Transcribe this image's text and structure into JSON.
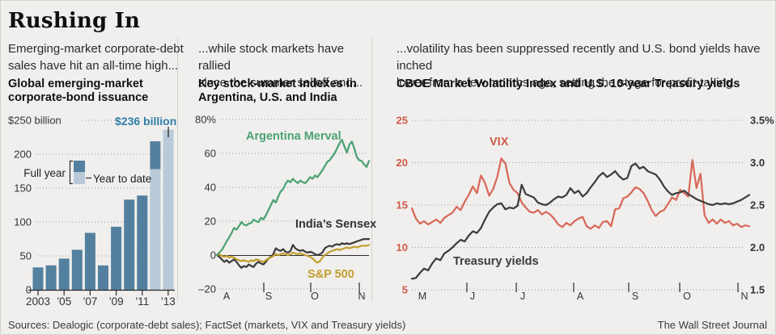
{
  "title": "Rushing In",
  "panels": {
    "debt": {
      "note1": "Emerging-market corporate-debt",
      "note2": "sales have hit an all-time high...",
      "chart_title1": "Global emerging-market",
      "chart_title2": "corporate-bond issuance",
      "callout": "$236 billion",
      "legend_full_year": "Full year",
      "legend_year_to_date": "Year to date"
    },
    "markets": {
      "note1": "...while stock markets have rallied",
      "note2": "since the summer selloff and...",
      "chart_title1": "Key stock-market indexes in",
      "chart_title2": "Argentina, U.S. and India",
      "label_merval": "Argentina Merval",
      "label_sensex": "India’s Sensex",
      "label_sp500": "S&P 500"
    },
    "volatility": {
      "note1": "...volatility has been suppressed recently and U.S. bond yields have inched",
      "note2": "lower from a few months ago, setting the stage for profit-taking.",
      "chart_title1": "CBOE Market Volatility Index and U.S. 10-year Treasury yields",
      "label_vix": "VIX",
      "label_treasury": "Treasury yields"
    }
  },
  "footer": {
    "sources": "Sources: Dealogic (corporate-debt sales); FactSet (markets, VIX and Treasury yields)",
    "credit": "The Wall Street Journal"
  },
  "colors": {
    "background": "#f0efed",
    "bar_dark": "#54809f",
    "bar_light": "#b9c9d8",
    "callout_blue": "#2e7ea9",
    "merval_green": "#4aa273",
    "sensex_dark": "#3d3d3d",
    "sp500_gold": "#c2a02e",
    "vix_red": "#d8685a",
    "axis_red": "#cf5a49",
    "treasury_dark": "#3d3d3d",
    "grid_gray": "#9a9996",
    "axis_dark": "#2b2b2b",
    "divider": "#d4d2cf",
    "label_gray": "#333333"
  },
  "chart_data": [
    {
      "type": "bar",
      "title": "Global emerging-market corporate-bond issuance",
      "unit": "billion USD",
      "categories": [
        "2003",
        "2004",
        "2005",
        "2006",
        "2007",
        "2008",
        "2009",
        "2010",
        "2011",
        "2012",
        "2013"
      ],
      "series": [
        {
          "name": "Full year",
          "values": [
            33,
            36,
            46,
            59,
            84,
            36,
            93,
            133,
            139,
            219,
            null
          ]
        },
        {
          "name": "Year to date",
          "values": [
            null,
            null,
            null,
            null,
            null,
            null,
            null,
            null,
            null,
            178,
            236
          ]
        }
      ],
      "x_tick_labels": [
        "2003",
        "’05",
        "’07",
        "’09",
        "’11",
        "’13"
      ],
      "y_tick_labels": [
        "$250 billion",
        "200",
        "150",
        "100",
        "50",
        "0"
      ],
      "y_tick_values": [
        250,
        200,
        150,
        100,
        50,
        0
      ],
      "ylim": [
        0,
        250
      ],
      "annotation": "$236 billion"
    },
    {
      "type": "line",
      "title": "Key stock-market indexes in Argentina, U.S. and India",
      "unit": "% change since Aug. 1",
      "x_tick_labels": [
        "A",
        "S",
        "O",
        "N"
      ],
      "y_tick_labels": [
        "80%",
        "60",
        "40",
        "20",
        "0",
        "–20"
      ],
      "y_tick_values": [
        80,
        60,
        40,
        20,
        0,
        -20
      ],
      "ylim": [
        -20,
        80
      ],
      "series": [
        {
          "name": "Argentina Merval",
          "values": [
            0,
            1.5,
            3,
            5.5,
            8,
            10.5,
            13,
            16,
            15,
            17,
            19.5,
            18,
            17.5,
            18.5,
            19,
            21,
            20,
            19.5,
            22,
            21,
            23.5,
            26.5,
            29.5,
            32.5,
            31,
            34.5,
            37.5,
            39,
            42,
            44,
            43,
            45,
            43.5,
            42.5,
            44,
            43,
            42.5,
            44,
            46,
            45,
            47,
            46,
            48,
            50,
            52.5,
            55,
            56,
            58,
            60,
            63,
            66,
            68,
            64,
            60.5,
            65,
            67,
            63,
            58,
            56,
            55.5,
            53.5,
            52,
            55.5
          ]
        },
        {
          "name": "India’s Sensex",
          "values": [
            0,
            -1,
            -2.5,
            -4,
            -3,
            -4.5,
            -3.5,
            -2.5,
            -4,
            -6,
            -7.5,
            -6.5,
            -7,
            -5.5,
            -6.5,
            -7,
            -5,
            -4,
            -5,
            -5.5,
            -4,
            -2,
            -1,
            0.5,
            4,
            3,
            2.5,
            3.5,
            2,
            1.5,
            2.5,
            6,
            4,
            3,
            2.5,
            3,
            2,
            1.5,
            2,
            1.5,
            0.5,
            0,
            0.5,
            1.5,
            4,
            5,
            5.5,
            5,
            6,
            6.5,
            6,
            7,
            6.5,
            7,
            6.5,
            7,
            7.5,
            8,
            8.5,
            9,
            9.5,
            9.5,
            9.5
          ]
        },
        {
          "name": "S&P 500",
          "values": [
            0,
            0.5,
            -0.5,
            -1,
            -0.5,
            -1.5,
            -1,
            -1.5,
            -2.5,
            -3,
            -3.5,
            -3,
            -3.5,
            -4,
            -3,
            -3.5,
            -2.5,
            -3,
            -3.5,
            -4,
            -3,
            -2,
            -1.5,
            -0.5,
            0.5,
            0,
            0.5,
            1,
            0.5,
            0,
            0.5,
            1.5,
            1,
            0.5,
            1,
            0.5,
            0,
            -0.5,
            -1,
            -2,
            -3.5,
            -4.5,
            -3.5,
            -1.5,
            0,
            1,
            2,
            2.5,
            3,
            3.5,
            3,
            3.5,
            4,
            4.5,
            4,
            4.5,
            5,
            4.5,
            5,
            5.5,
            5.5,
            5.5,
            6
          ]
        }
      ]
    },
    {
      "type": "line",
      "title": "CBOE Market Volatility Index and U.S. 10-year Treasury yields",
      "dual_axis": true,
      "x_tick_labels": [
        "M",
        "J",
        "J",
        "A",
        "S",
        "O",
        "N"
      ],
      "left_y_tick_labels": [
        "25",
        "20",
        "15",
        "10",
        "5"
      ],
      "left_y_tick_values": [
        25,
        20,
        15,
        10,
        5
      ],
      "right_y_tick_labels": [
        "3.5%",
        "3.0",
        "2.5",
        "2.0",
        "1.5"
      ],
      "right_y_tick_values": [
        3.5,
        3.0,
        2.5,
        2.0,
        1.5
      ],
      "left_ylim": [
        5,
        25
      ],
      "right_ylim": [
        1.5,
        3.5
      ],
      "series": [
        {
          "name": "VIX",
          "axis": "left",
          "values": [
            14.6,
            13.4,
            12.8,
            13.1,
            12.7,
            13.0,
            13.3,
            12.9,
            13.5,
            13.8,
            14.1,
            14.8,
            14.4,
            15.4,
            16.2,
            17.2,
            16.4,
            18.5,
            17.6,
            16.1,
            16.9,
            18.3,
            20.5,
            19.9,
            17.6,
            16.8,
            16.4,
            15.3,
            14.7,
            14.2,
            14.1,
            14.4,
            13.9,
            14.2,
            13.9,
            13.4,
            12.7,
            12.4,
            12.9,
            12.6,
            13.1,
            13.4,
            13.6,
            12.5,
            12.2,
            12.6,
            12.3,
            13.0,
            13.1,
            12.5,
            14.5,
            14.6,
            15.8,
            16.0,
            16.5,
            17.1,
            16.9,
            16.4,
            15.5,
            14.4,
            13.7,
            14.2,
            14.4,
            15.1,
            15.9,
            15.6,
            16.8,
            16.4,
            16.0,
            20.3,
            17.0,
            18.7,
            13.8,
            12.9,
            13.3,
            12.8,
            13.3,
            12.9,
            13.1,
            12.6,
            12.8,
            12.4,
            12.6,
            12.5
          ]
        },
        {
          "name": "U.S. 10-year Treasury yield",
          "axis": "right",
          "values": [
            1.63,
            1.64,
            1.7,
            1.75,
            1.73,
            1.81,
            1.87,
            1.85,
            1.93,
            1.96,
            2.0,
            2.05,
            2.09,
            2.07,
            2.14,
            2.19,
            2.17,
            2.23,
            2.33,
            2.42,
            2.47,
            2.51,
            2.52,
            2.45,
            2.47,
            2.46,
            2.49,
            2.74,
            2.63,
            2.61,
            2.59,
            2.53,
            2.51,
            2.5,
            2.53,
            2.57,
            2.6,
            2.59,
            2.62,
            2.7,
            2.64,
            2.67,
            2.6,
            2.64,
            2.71,
            2.77,
            2.84,
            2.88,
            2.83,
            2.86,
            2.9,
            2.84,
            2.8,
            2.82,
            2.96,
            2.99,
            2.93,
            2.95,
            2.9,
            2.88,
            2.86,
            2.8,
            2.72,
            2.66,
            2.62,
            2.64,
            2.65,
            2.67,
            2.63,
            2.6,
            2.57,
            2.55,
            2.53,
            2.51,
            2.5,
            2.52,
            2.51,
            2.52,
            2.51,
            2.52,
            2.54,
            2.56,
            2.59,
            2.62
          ]
        }
      ]
    }
  ]
}
